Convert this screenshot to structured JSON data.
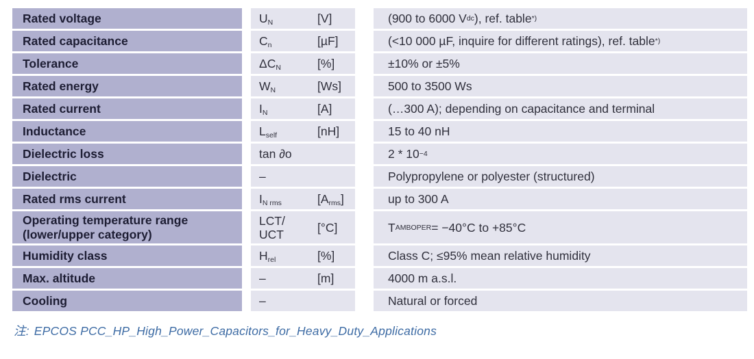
{
  "table": {
    "rows": [
      {
        "label": "Rated voltage",
        "symbol": "U_{N}",
        "unit": "[V]",
        "value": "(900 to 6000 V_{dc}), ref. table^{*)}"
      },
      {
        "label": "Rated capacitance",
        "symbol": "C_{n}",
        "unit": "[µF]",
        "value": "(<10 000 µF, inquire for different ratings), ref. table^{*)}"
      },
      {
        "label": "Tolerance",
        "symbol": "ΔC_{N}",
        "unit": "[%]",
        "value": "±10% or ±5%"
      },
      {
        "label": "Rated energy",
        "symbol": "W_{N}",
        "unit": "[Ws]",
        "value": "500 to 3500 Ws"
      },
      {
        "label": "Rated current",
        "symbol": "I_{N}",
        "unit": "[A]",
        "value": "(…300 A); depending on capacitance and terminal"
      },
      {
        "label": "Inductance",
        "symbol": "L_{self}",
        "unit": "[nH]",
        "value": "15 to 40 nH"
      },
      {
        "label": "Dielectric loss",
        "symbol": "tan ∂o",
        "unit": "",
        "value": "2 * 10^{−4}"
      },
      {
        "label": "Dielectric",
        "symbol": "–",
        "unit": "",
        "value": "Polypropylene or polyester (structured)"
      },
      {
        "label": "Rated rms current",
        "symbol": "I_{N rms}",
        "unit": "[A_{rms}]",
        "value": "up to 300 A"
      },
      {
        "label": "Operating temperature range\n(lower/upper category)",
        "symbol": "LCT/\nUCT",
        "unit": "[°C]",
        "value": "T_{AMBOPER} = −40°C to +85°C"
      },
      {
        "label": "Humidity class",
        "symbol": "H_{rel}",
        "unit": "[%]",
        "value": "Class C; ≤95% mean relative humidity"
      },
      {
        "label": "Max. altitude",
        "symbol": "–",
        "unit": "[m]",
        "value": "4000 m a.s.l."
      },
      {
        "label": "Cooling",
        "symbol": "–",
        "unit": "",
        "value": "Natural or forced"
      }
    ]
  },
  "footnote": {
    "prefix": "注:",
    "text": "EPCOS PCC_HP_High_Power_Capacitors_for_Heavy_Duty_Applications"
  },
  "colors": {
    "param_column_bg": "#b0b0cf",
    "panel_bg": "#e4e4ee",
    "label_text": "#1d1d33",
    "value_text": "#30303c",
    "footnote_blue": "#3d6ba4",
    "page_bg": "#ffffff"
  }
}
